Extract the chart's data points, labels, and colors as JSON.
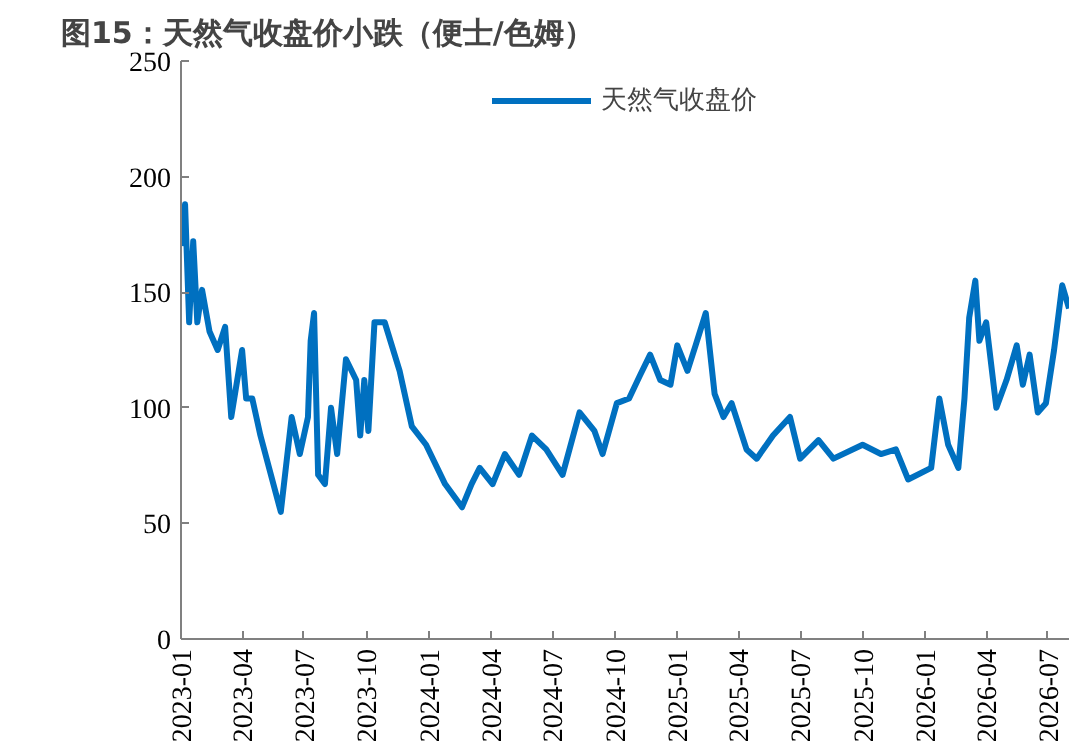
{
  "chart_data": {
    "type": "line",
    "title": "图15：天然气收盘价小跌（便士/色姆）",
    "x": [
      "2023-01-01",
      "2023-01-07",
      "2023-01-13",
      "2023-01-19",
      "2023-01-25",
      "2023-02-01",
      "2023-02-12",
      "2023-02-24",
      "2023-03-07",
      "2023-03-16",
      "2023-04-01",
      "2023-04-07",
      "2023-04-16",
      "2023-04-28",
      "2023-05-28",
      "2023-06-13",
      "2023-06-25",
      "2023-07-07",
      "2023-07-11",
      "2023-07-16",
      "2023-07-22",
      "2023-08-01",
      "2023-08-10",
      "2023-08-19",
      "2023-09-01",
      "2023-09-16",
      "2023-09-22",
      "2023-09-28",
      "2023-10-04",
      "2023-10-13",
      "2023-10-28",
      "2023-11-19",
      "2023-12-07",
      "2023-12-28",
      "2024-01-25",
      "2024-02-19",
      "2024-03-04",
      "2024-03-16",
      "2024-04-04",
      "2024-04-22",
      "2024-05-13",
      "2024-06-01",
      "2024-06-22",
      "2024-07-16",
      "2024-08-10",
      "2024-09-01",
      "2024-09-13",
      "2024-10-04",
      "2024-10-22",
      "2024-11-07",
      "2024-11-22",
      "2024-12-07",
      "2024-12-22",
      "2025-01-01",
      "2025-01-16",
      "2025-01-28",
      "2025-02-12",
      "2025-02-25",
      "2025-03-10",
      "2025-03-22",
      "2025-04-13",
      "2025-04-28",
      "2025-05-22",
      "2025-06-16",
      "2025-07-01",
      "2025-07-28",
      "2025-08-19",
      "2025-10-01",
      "2025-10-28",
      "2025-11-19",
      "2025-12-07",
      "2026-01-10",
      "2026-01-22",
      "2026-02-04",
      "2026-02-19",
      "2026-02-28",
      "2026-03-07",
      "2026-03-16",
      "2026-03-22",
      "2026-04-01",
      "2026-04-16",
      "2026-05-01",
      "2026-05-16",
      "2026-05-25",
      "2026-06-04",
      "2026-06-16",
      "2026-06-28",
      "2026-07-10",
      "2026-07-22",
      "2026-08-01"
    ],
    "series": [
      {
        "name": "天然气收盘价",
        "color": "#0070c0",
        "values": [
          170,
          188,
          137,
          172,
          137,
          151,
          133,
          125,
          135,
          96,
          125,
          104,
          104,
          88,
          55,
          96,
          80,
          96,
          129,
          141,
          71,
          67,
          100,
          80,
          121,
          112,
          88,
          112,
          90,
          137,
          137,
          116,
          92,
          84,
          67,
          57,
          67,
          74,
          67,
          80,
          71,
          88,
          82,
          71,
          98,
          90,
          80,
          102,
          104,
          114,
          123,
          112,
          110,
          127,
          116,
          127,
          141,
          106,
          96,
          102,
          82,
          78,
          88,
          96,
          78,
          86,
          78,
          84,
          80,
          82,
          69,
          74,
          104,
          84,
          74,
          104,
          139,
          155,
          129,
          137,
          100,
          112,
          127,
          110,
          123,
          98,
          102,
          125,
          153,
          143
        ]
      }
    ],
    "xlim": [
      "2023-01-01",
      "2026-08-01"
    ],
    "xticks": [
      "2023-01",
      "2023-04",
      "2023-07",
      "2023-10",
      "2024-01",
      "2024-04",
      "2024-07",
      "2024-10",
      "2025-01",
      "2025-04",
      "2025-07",
      "2025-10",
      "2026-01",
      "2026-04",
      "2026-07"
    ],
    "ylim": [
      0,
      250
    ],
    "yticks": [
      0,
      50,
      100,
      150,
      200,
      250
    ],
    "grid": false,
    "legend": "top",
    "marker": "none",
    "line_style": "solid"
  }
}
